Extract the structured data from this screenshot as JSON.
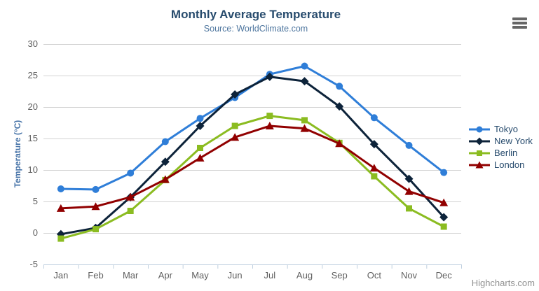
{
  "chart_data": {
    "type": "line",
    "title": "Monthly Average Temperature",
    "subtitle": "Source: WorldClimate.com",
    "categories": [
      "Jan",
      "Feb",
      "Mar",
      "Apr",
      "May",
      "Jun",
      "Jul",
      "Aug",
      "Sep",
      "Oct",
      "Nov",
      "Dec"
    ],
    "xlabel": "",
    "ylabel": "Temperature (°C)",
    "ylim": [
      -5,
      30
    ],
    "ytick_step": 5,
    "grid": true,
    "legend_position": "right-middle",
    "series": [
      {
        "name": "Tokyo",
        "color": "#2f7ed8",
        "marker": "circle",
        "values": [
          7.0,
          6.9,
          9.5,
          14.5,
          18.2,
          21.5,
          25.2,
          26.5,
          23.3,
          18.3,
          13.9,
          9.6
        ]
      },
      {
        "name": "New York",
        "color": "#0d233a",
        "marker": "diamond",
        "values": [
          -0.2,
          0.8,
          5.7,
          11.3,
          17.0,
          22.0,
          24.8,
          24.1,
          20.1,
          14.1,
          8.6,
          2.5
        ]
      },
      {
        "name": "Berlin",
        "color": "#8bbc21",
        "marker": "square",
        "values": [
          -0.9,
          0.6,
          3.5,
          8.4,
          13.5,
          17.0,
          18.6,
          17.9,
          14.3,
          9.0,
          3.9,
          1.0
        ]
      },
      {
        "name": "London",
        "color": "#910000",
        "marker": "triangle",
        "values": [
          3.9,
          4.2,
          5.7,
          8.5,
          11.9,
          15.2,
          17.0,
          16.6,
          14.2,
          10.3,
          6.6,
          4.8
        ]
      }
    ]
  },
  "credits": {
    "label": "Highcharts.com"
  },
  "icons": {
    "export_menu": "hamburger-icon"
  },
  "colors": {
    "title": "#274b6d",
    "subtitle": "#4d759e",
    "axis_labels": "#606060",
    "y_axis_title": "#4572a7",
    "grid_line": "#d2d2d2",
    "axis_line": "#c0d0e0",
    "legend_text": "#274b6d",
    "credits_text": "#909090",
    "menu_icon": "#666666",
    "background": "#ffffff"
  }
}
